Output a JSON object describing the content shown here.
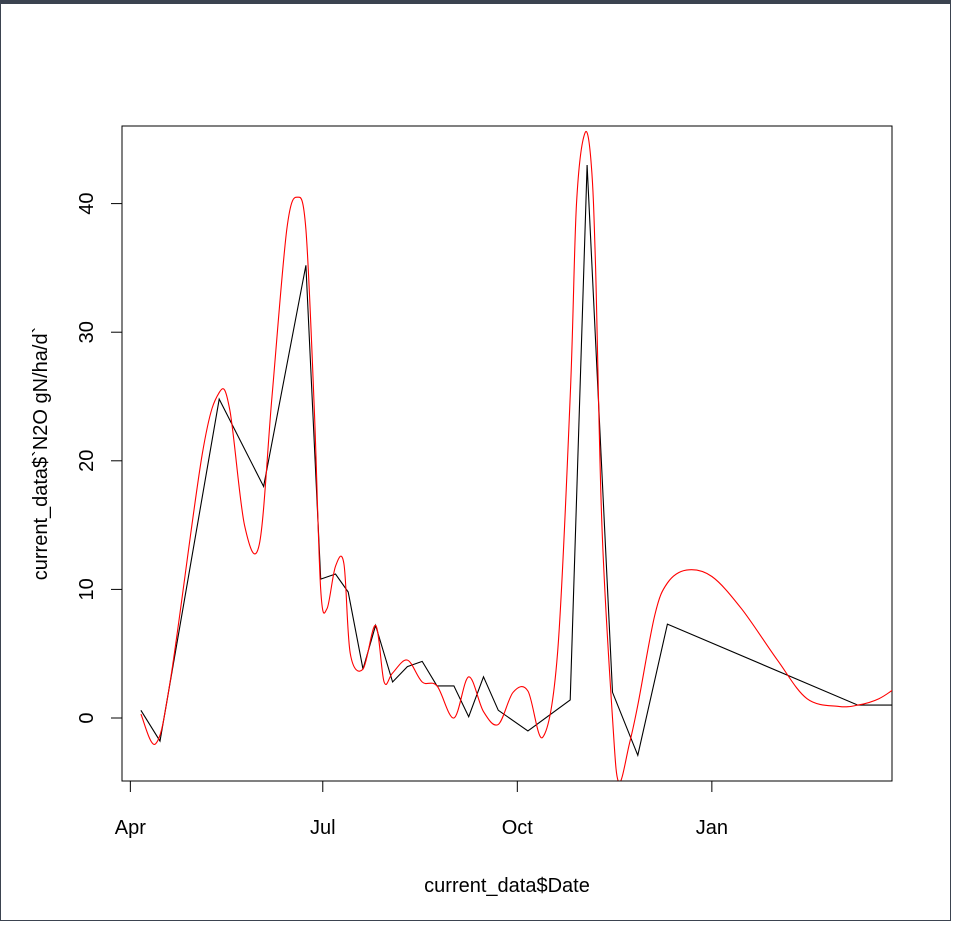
{
  "chart_data": {
    "type": "line",
    "xlabel": "current_data$Date",
    "ylabel": "current_data$`N2O gN/ha/d`",
    "x_is_date": true,
    "xlim": [
      "2023-03-29",
      "2024-04-20"
    ],
    "ylim": [
      -5,
      46
    ],
    "x_ticks": [
      {
        "date": "2023-04-01",
        "label": "Apr"
      },
      {
        "date": "2023-07-01",
        "label": "Jul"
      },
      {
        "date": "2023-10-01",
        "label": "Oct"
      },
      {
        "date": "2024-01-01",
        "label": "Jan"
      }
    ],
    "y_ticks": [
      0,
      10,
      20,
      30,
      40
    ],
    "grid": false,
    "series": [
      {
        "color": "#000000",
        "style": "observed",
        "x": [
          "2023-04-06",
          "2023-04-15",
          "2023-05-13",
          "2023-06-03",
          "2023-06-23",
          "2023-06-30",
          "2023-07-07",
          "2023-07-13",
          "2023-07-20",
          "2023-07-26",
          "2023-08-03",
          "2023-08-10",
          "2023-08-17",
          "2023-08-24",
          "2023-09-01",
          "2023-09-08",
          "2023-09-15",
          "2023-09-22",
          "2023-10-06",
          "2023-10-26",
          "2023-11-03",
          "2023-11-15",
          "2023-11-27",
          "2023-12-11",
          "2024-03-10",
          "2024-03-29",
          "2024-04-15"
        ],
        "y": [
          0.6,
          -1.8,
          24.8,
          18.0,
          35.2,
          10.8,
          11.2,
          9.8,
          3.8,
          7.2,
          2.8,
          4.0,
          4.4,
          2.5,
          2.5,
          0.1,
          3.2,
          0.6,
          -1.0,
          1.4,
          43.0,
          2.0,
          -2.9,
          7.3,
          1.0,
          1.0,
          4.8
        ]
      },
      {
        "color": "#ff0000",
        "style": "spline-fit",
        "x": [
          "2023-04-06",
          "2023-04-13",
          "2023-04-20",
          "2023-05-05",
          "2023-05-13",
          "2023-05-18",
          "2023-05-25",
          "2023-06-01",
          "2023-06-07",
          "2023-06-14",
          "2023-06-19",
          "2023-06-23",
          "2023-06-27",
          "2023-06-30",
          "2023-07-03",
          "2023-07-07",
          "2023-07-11",
          "2023-07-14",
          "2023-07-20",
          "2023-07-26",
          "2023-07-30",
          "2023-08-03",
          "2023-08-10",
          "2023-08-17",
          "2023-08-24",
          "2023-09-01",
          "2023-09-08",
          "2023-09-15",
          "2023-09-22",
          "2023-09-29",
          "2023-10-06",
          "2023-10-13",
          "2023-10-20",
          "2023-10-26",
          "2023-10-29",
          "2023-11-02",
          "2023-11-05",
          "2023-11-07",
          "2023-11-10",
          "2023-11-15",
          "2023-11-18",
          "2023-11-23",
          "2023-11-27",
          "2023-12-05",
          "2023-12-11",
          "2023-12-20",
          "2024-01-01",
          "2024-01-15",
          "2024-02-01",
          "2024-02-15",
          "2024-03-01",
          "2024-03-10",
          "2024-03-20",
          "2024-03-29",
          "2024-04-08",
          "2024-04-15"
        ],
        "y": [
          0.3,
          -2.0,
          3.0,
          20.5,
          25.3,
          24.0,
          15.0,
          13.5,
          25.0,
          38.0,
          40.5,
          38.0,
          24.0,
          10.0,
          8.5,
          11.8,
          12.0,
          5.0,
          3.8,
          7.2,
          2.8,
          3.5,
          4.5,
          2.8,
          2.5,
          0.0,
          3.2,
          0.5,
          -0.5,
          2.0,
          2.1,
          -1.5,
          5.0,
          25.0,
          40.0,
          45.5,
          43.0,
          35.0,
          15.0,
          0.0,
          -5.0,
          -2.0,
          1.0,
          8.0,
          10.5,
          11.5,
          11.0,
          8.5,
          4.5,
          1.5,
          0.9,
          1.0,
          1.5,
          2.5,
          4.0,
          4.8
        ]
      }
    ]
  }
}
